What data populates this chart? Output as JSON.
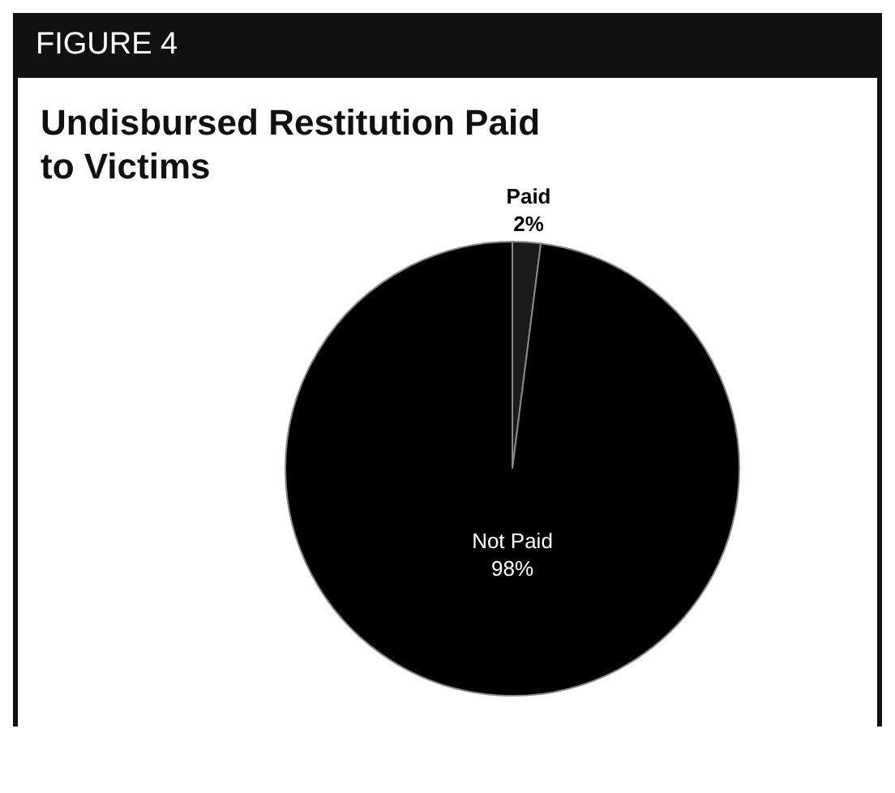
{
  "chart_data": {
    "type": "pie",
    "title": "Undisbursed Restitution Paid to Victims",
    "annotations": [
      "FIGURE 4"
    ],
    "categories": [
      "Paid",
      "Not Paid"
    ],
    "values": [
      2,
      98
    ],
    "value_labels": [
      "2%",
      "98%"
    ],
    "colors": [
      "#1a1a1a",
      "#000000"
    ]
  }
}
